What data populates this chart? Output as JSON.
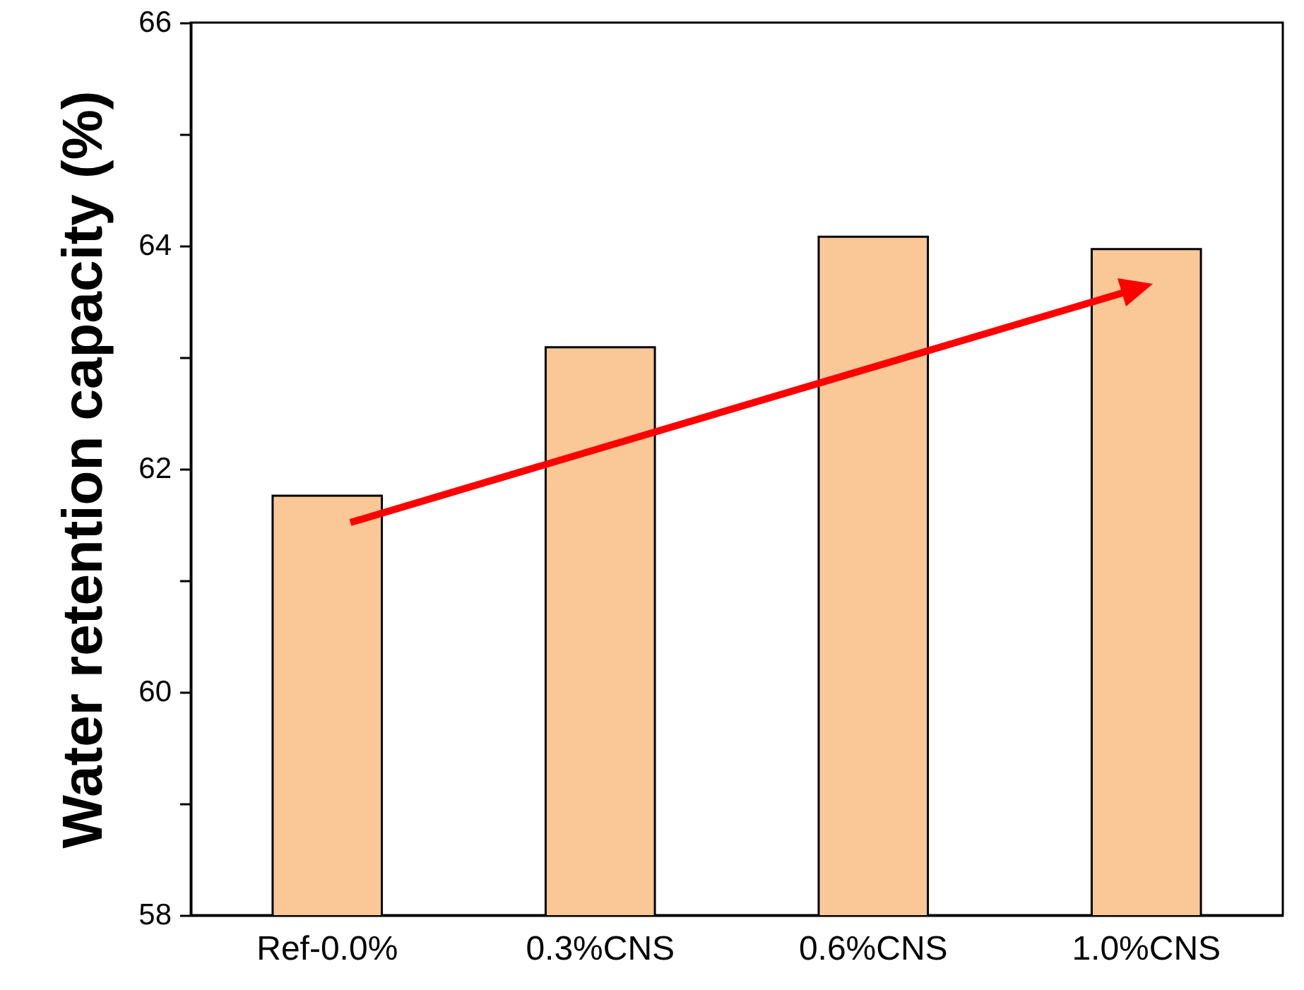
{
  "chart_data": {
    "type": "bar",
    "ylabel": "Water retention capacity (%)",
    "categories": [
      "Ref-0.0%",
      "0.3%CNS",
      "0.6%CNS",
      "1.0%CNS"
    ],
    "values": [
      61.76,
      63.09,
      64.08,
      63.97
    ],
    "color": "#f9c896",
    "ylim": [
      58,
      66
    ],
    "yticks": [
      58,
      {
        "value": 59,
        "label": null
      },
      60,
      {
        "value": 61,
        "label": null
      },
      62,
      {
        "value": 63,
        "label": null
      },
      64,
      {
        "value": 65,
        "label": null
      },
      66
    ],
    "grid": false
  }
}
